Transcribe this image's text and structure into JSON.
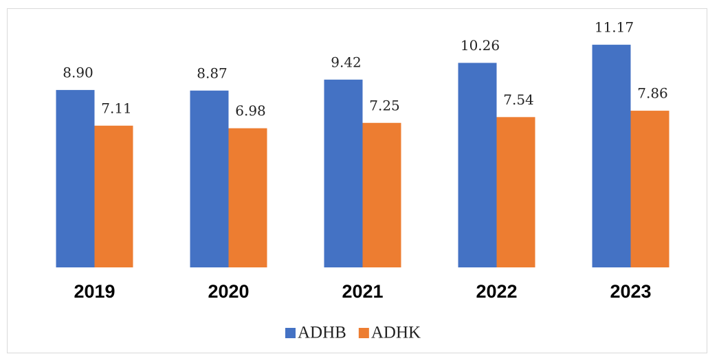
{
  "chart_data": {
    "type": "bar",
    "categories": [
      "2019",
      "2020",
      "2021",
      "2022",
      "2023"
    ],
    "series": [
      {
        "name": "ADHB",
        "color": "#4472c4",
        "values": [
          8.9,
          8.87,
          9.42,
          10.26,
          11.17
        ],
        "value_labels": [
          "8.90",
          "8.87",
          "9.42",
          "10.26",
          "11.17"
        ]
      },
      {
        "name": "ADHK",
        "color": "#ed7d31",
        "values": [
          7.11,
          6.98,
          7.25,
          7.54,
          7.86
        ],
        "value_labels": [
          "7.11",
          "6.98",
          "7.25",
          "7.54",
          "7.86"
        ]
      }
    ],
    "ylim": [
      0,
      12
    ]
  }
}
